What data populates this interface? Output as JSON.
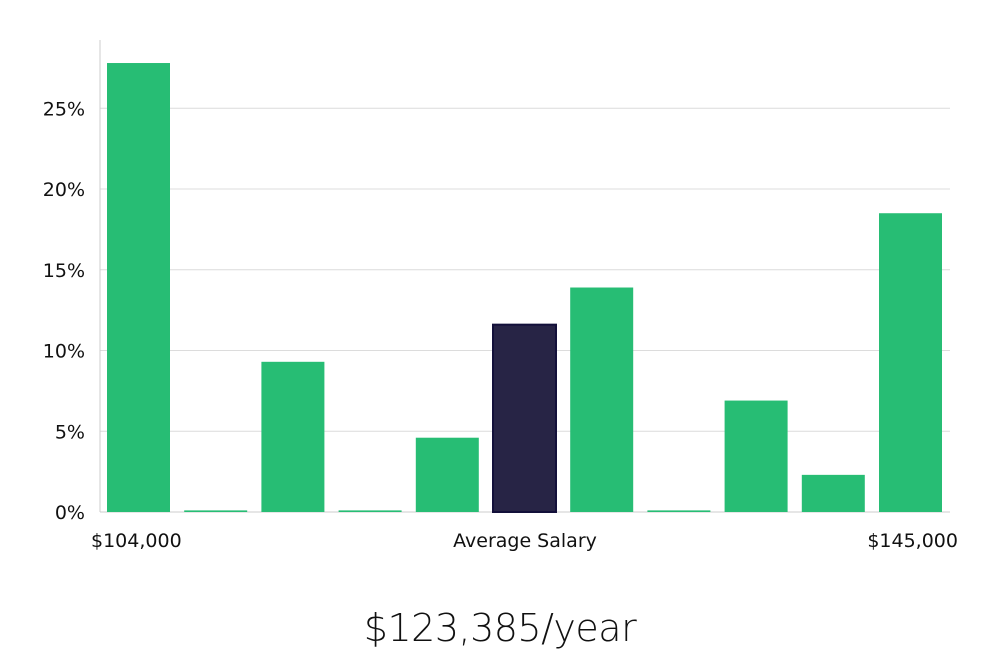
{
  "chart_data": {
    "type": "bar",
    "title": "",
    "xlabel": "Average Salary",
    "ylabel": "",
    "x_range_labels": [
      "$104,000",
      "$145,000"
    ],
    "y_ticks": [
      "0%",
      "5%",
      "10%",
      "15%",
      "20%",
      "25%"
    ],
    "ylim": [
      0,
      29
    ],
    "values": [
      27.8,
      0.1,
      9.3,
      0.1,
      4.6,
      11.6,
      13.9,
      0.1,
      6.9,
      2.3,
      18.5
    ],
    "highlight_index": 5,
    "grid": true,
    "colors": {
      "bar": "#27bd74",
      "highlight": "#272445",
      "highlight_border": "#13103a",
      "grid": "#dcdcdc",
      "axis": "#cccccc"
    }
  },
  "footer": {
    "salary": "$123,385/year"
  }
}
